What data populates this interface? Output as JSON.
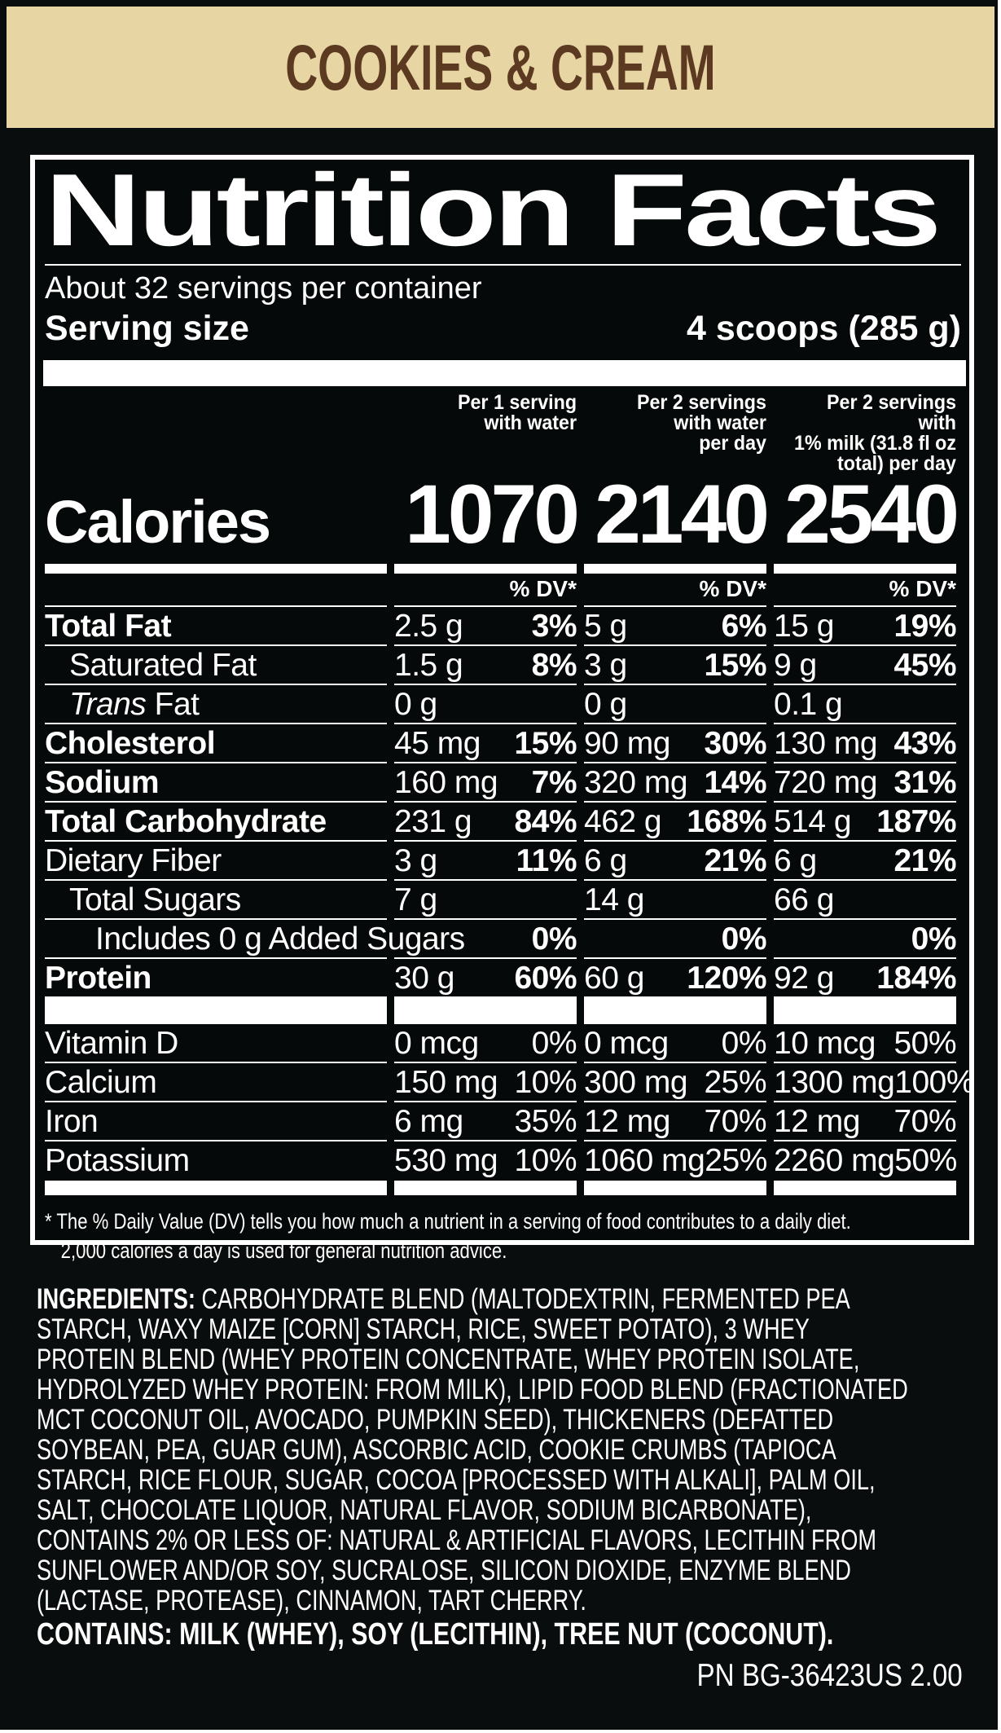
{
  "colors": {
    "background": "#0a0d0d",
    "banner_bg": "#e8d5a4",
    "banner_text": "#5b3a21",
    "label_text": "#ffffff"
  },
  "flavor_banner": {
    "text": "COOKIES & CREAM"
  },
  "nutrition_label": {
    "title": "Nutrition Facts",
    "servings_per_container": "About 32 servings per container",
    "serving_size": {
      "label": "Serving size",
      "value": "4 scoops (285 g)"
    },
    "column_headers": [
      "Per 1 serving\nwith water",
      "Per 2 servings\nwith water\nper day",
      "Per 2 servings with\n1% milk (31.8 fl oz\ntotal) per day"
    ],
    "calories": {
      "label": "Calories",
      "values": [
        "1070",
        "2140",
        "2540"
      ]
    },
    "dv_header": "% DV*",
    "nutrients": [
      {
        "name": "Total Fat",
        "cells": [
          {
            "amount": "2.5 g",
            "dv": "3%"
          },
          {
            "amount": "5 g",
            "dv": "6%"
          },
          {
            "amount": "15 g",
            "dv": "19%"
          }
        ]
      },
      {
        "name": "Saturated Fat",
        "cells": [
          {
            "amount": "1.5 g",
            "dv": "8%"
          },
          {
            "amount": "3 g",
            "dv": "15%"
          },
          {
            "amount": "9 g",
            "dv": "45%"
          }
        ]
      },
      {
        "name_italic": "Trans",
        "name": " Fat",
        "cells": [
          {
            "amount": "0 g",
            "dv": ""
          },
          {
            "amount": "0 g",
            "dv": ""
          },
          {
            "amount": "0.1 g",
            "dv": ""
          }
        ]
      },
      {
        "name": "Cholesterol",
        "cells": [
          {
            "amount": "45 mg",
            "dv": "15%"
          },
          {
            "amount": "90 mg",
            "dv": "30%"
          },
          {
            "amount": "130 mg",
            "dv": "43%"
          }
        ]
      },
      {
        "name": "Sodium",
        "cells": [
          {
            "amount": "160 mg",
            "dv": "7%"
          },
          {
            "amount": "320 mg",
            "dv": "14%"
          },
          {
            "amount": "720 mg",
            "dv": "31%"
          }
        ]
      },
      {
        "name": "Total Carbohydrate",
        "cells": [
          {
            "amount": "231 g",
            "dv": "84%"
          },
          {
            "amount": "462 g",
            "dv": "168%"
          },
          {
            "amount": "514 g",
            "dv": "187%"
          }
        ]
      },
      {
        "name": "Dietary Fiber",
        "cells": [
          {
            "amount": "3 g",
            "dv": "11%"
          },
          {
            "amount": "6 g",
            "dv": "21%"
          },
          {
            "amount": "6 g",
            "dv": "21%"
          }
        ]
      },
      {
        "name": "Total Sugars",
        "cells": [
          {
            "amount": "7 g",
            "dv": ""
          },
          {
            "amount": "14 g",
            "dv": ""
          },
          {
            "amount": "66 g",
            "dv": ""
          }
        ]
      },
      {
        "name": "Includes 0 g Added Sugars",
        "cells": [
          {
            "amount": "",
            "dv": "0%"
          },
          {
            "amount": "",
            "dv": "0%"
          },
          {
            "amount": "",
            "dv": "0%"
          }
        ]
      },
      {
        "name": "Protein",
        "cells": [
          {
            "amount": "30 g",
            "dv": "60%"
          },
          {
            "amount": "60 g",
            "dv": "120%"
          },
          {
            "amount": "92 g",
            "dv": "184%"
          }
        ]
      }
    ],
    "micronutrients": [
      {
        "name": "Vitamin D",
        "cells": [
          {
            "amount": "0 mcg",
            "dv": "0%"
          },
          {
            "amount": "0 mcg",
            "dv": "0%"
          },
          {
            "amount": "10 mcg",
            "dv": "50%"
          }
        ]
      },
      {
        "name": "Calcium",
        "cells": [
          {
            "amount": "150 mg",
            "dv": "10%"
          },
          {
            "amount": "300 mg",
            "dv": "25%"
          },
          {
            "amount": "1300 mg",
            "dv": "100%"
          }
        ]
      },
      {
        "name": "Iron",
        "cells": [
          {
            "amount": "6 mg",
            "dv": "35%"
          },
          {
            "amount": "12 mg",
            "dv": "70%"
          },
          {
            "amount": "12 mg",
            "dv": "70%"
          }
        ]
      },
      {
        "name": "Potassium",
        "cells": [
          {
            "amount": "530 mg",
            "dv": "10%"
          },
          {
            "amount": "1060 mg",
            "dv": "25%"
          },
          {
            "amount": "2260 mg",
            "dv": "50%"
          }
        ]
      }
    ],
    "footnote": "* The % Daily Value (DV) tells you how much a nutrient in a serving of food contributes to a daily diet.\n2,000 calories a day is used for general nutrition advice."
  },
  "ingredients": {
    "label": "INGREDIENTS:",
    "text": " CARBOHYDRATE BLEND (MALTODEXTRIN, FERMENTED PEA\nSTARCH, WAXY MAIZE [CORN] STARCH, RICE, SWEET POTATO), 3 WHEY\nPROTEIN BLEND (WHEY PROTEIN CONCENTRATE, WHEY PROTEIN ISOLATE,\nHYDROLYZED WHEY PROTEIN: FROM MILK), LIPID FOOD BLEND (FRACTIONATED\nMCT COCONUT OIL, AVOCADO, PUMPKIN SEED), THICKENERS (DEFATTED\nSOYBEAN, PEA, GUAR GUM), ASCORBIC ACID, COOKIE CRUMBS (TAPIOCA\nSTARCH, RICE FLOUR, SUGAR, COCOA [PROCESSED WITH ALKALI], PALM OIL,\nSALT, CHOCOLATE LIQUOR, NATURAL FLAVOR, SODIUM BICARBONATE),\nCONTAINS 2% OR LESS OF: NATURAL & ARTIFICIAL FLAVORS, LECITHIN FROM\nSUNFLOWER AND/OR SOY, SUCRALOSE, SILICON DIOXIDE, ENZYME BLEND\n(LACTASE, PROTEASE), CINNAMON, TART CHERRY."
  },
  "allergen": {
    "text": "CONTAINS: MILK (WHEY), SOY (LECITHIN), TREE NUT (COCONUT)."
  },
  "part_number": "PN BG-36423US 2.00"
}
